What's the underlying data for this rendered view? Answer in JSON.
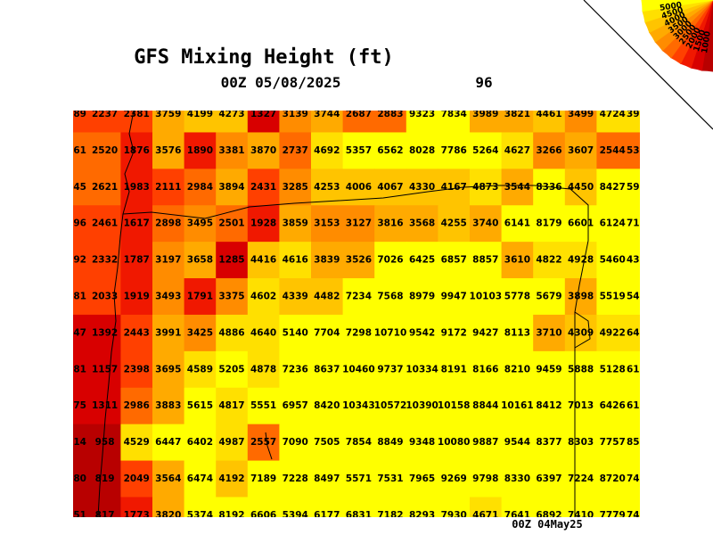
{
  "header": {
    "title": "GFS Mixing Height (ft)",
    "valid_time": "00Z 05/08/2025",
    "forecast_hour": "96",
    "footer": "00Z 04May25"
  },
  "legend": {
    "labels": [
      1000,
      1500,
      2000,
      2500,
      3000,
      3500,
      4000,
      4500,
      5000
    ],
    "colors": [
      "#b80000",
      "#d80000",
      "#f01800",
      "#ff4000",
      "#ff6a00",
      "#ff8c00",
      "#ffaa00",
      "#ffc400",
      "#ffe000",
      "#ffff00"
    ]
  },
  "grid": {
    "rows": [
      [
        89,
        2237,
        2381,
        3759,
        4199,
        4273,
        1327,
        3139,
        3744,
        2687,
        2883,
        9323,
        7834,
        3989,
        3821,
        4461,
        3499,
        4724,
        39
      ],
      [
        61,
        2520,
        1876,
        3576,
        1890,
        3381,
        3870,
        2737,
        4692,
        5357,
        6562,
        8028,
        7786,
        5264,
        4627,
        3266,
        3607,
        2544,
        53
      ],
      [
        45,
        2621,
        1983,
        2111,
        2984,
        3894,
        2431,
        3285,
        4253,
        4006,
        4067,
        4330,
        4167,
        4873,
        3544,
        8336,
        4450,
        8427,
        59
      ],
      [
        96,
        2461,
        1617,
        2898,
        3495,
        2501,
        1928,
        3859,
        3153,
        3127,
        3816,
        3568,
        4255,
        3740,
        6141,
        8179,
        6601,
        6124,
        71
      ],
      [
        92,
        2332,
        1787,
        3197,
        3658,
        1285,
        4416,
        4616,
        3839,
        3526,
        7026,
        6425,
        6857,
        8857,
        3610,
        4822,
        4928,
        5460,
        43
      ],
      [
        81,
        2033,
        1919,
        3493,
        1791,
        3375,
        4602,
        4339,
        4482,
        7234,
        7568,
        8979,
        9947,
        10103,
        5778,
        5679,
        3898,
        5519,
        54
      ],
      [
        47,
        1392,
        2443,
        3991,
        3425,
        4886,
        4640,
        5140,
        7704,
        7298,
        10710,
        9542,
        9172,
        9427,
        8113,
        3710,
        4309,
        4922,
        64
      ],
      [
        81,
        1157,
        2398,
        3695,
        4589,
        5205,
        4878,
        7236,
        8637,
        10460,
        9737,
        10334,
        8191,
        8166,
        8210,
        9459,
        5888,
        5128,
        61
      ],
      [
        75,
        1311,
        2986,
        3883,
        5615,
        4817,
        5551,
        6957,
        8420,
        10343,
        10572,
        10390,
        10158,
        8844,
        10161,
        8412,
        7013,
        6426,
        61
      ],
      [
        14,
        958,
        4529,
        6447,
        6402,
        4987,
        2557,
        7090,
        7505,
        7854,
        8849,
        9348,
        10080,
        9887,
        9544,
        8377,
        8303,
        7757,
        85
      ],
      [
        80,
        819,
        2049,
        3564,
        6474,
        4192,
        7189,
        7228,
        8497,
        5571,
        7531,
        7965,
        9269,
        9798,
        8330,
        6397,
        7224,
        8720,
        74
      ],
      [
        51,
        817,
        1773,
        3820,
        5374,
        8192,
        6606,
        5394,
        6177,
        6831,
        7182,
        8293,
        7930,
        4671,
        7641,
        6892,
        7410,
        7779,
        74
      ]
    ]
  }
}
